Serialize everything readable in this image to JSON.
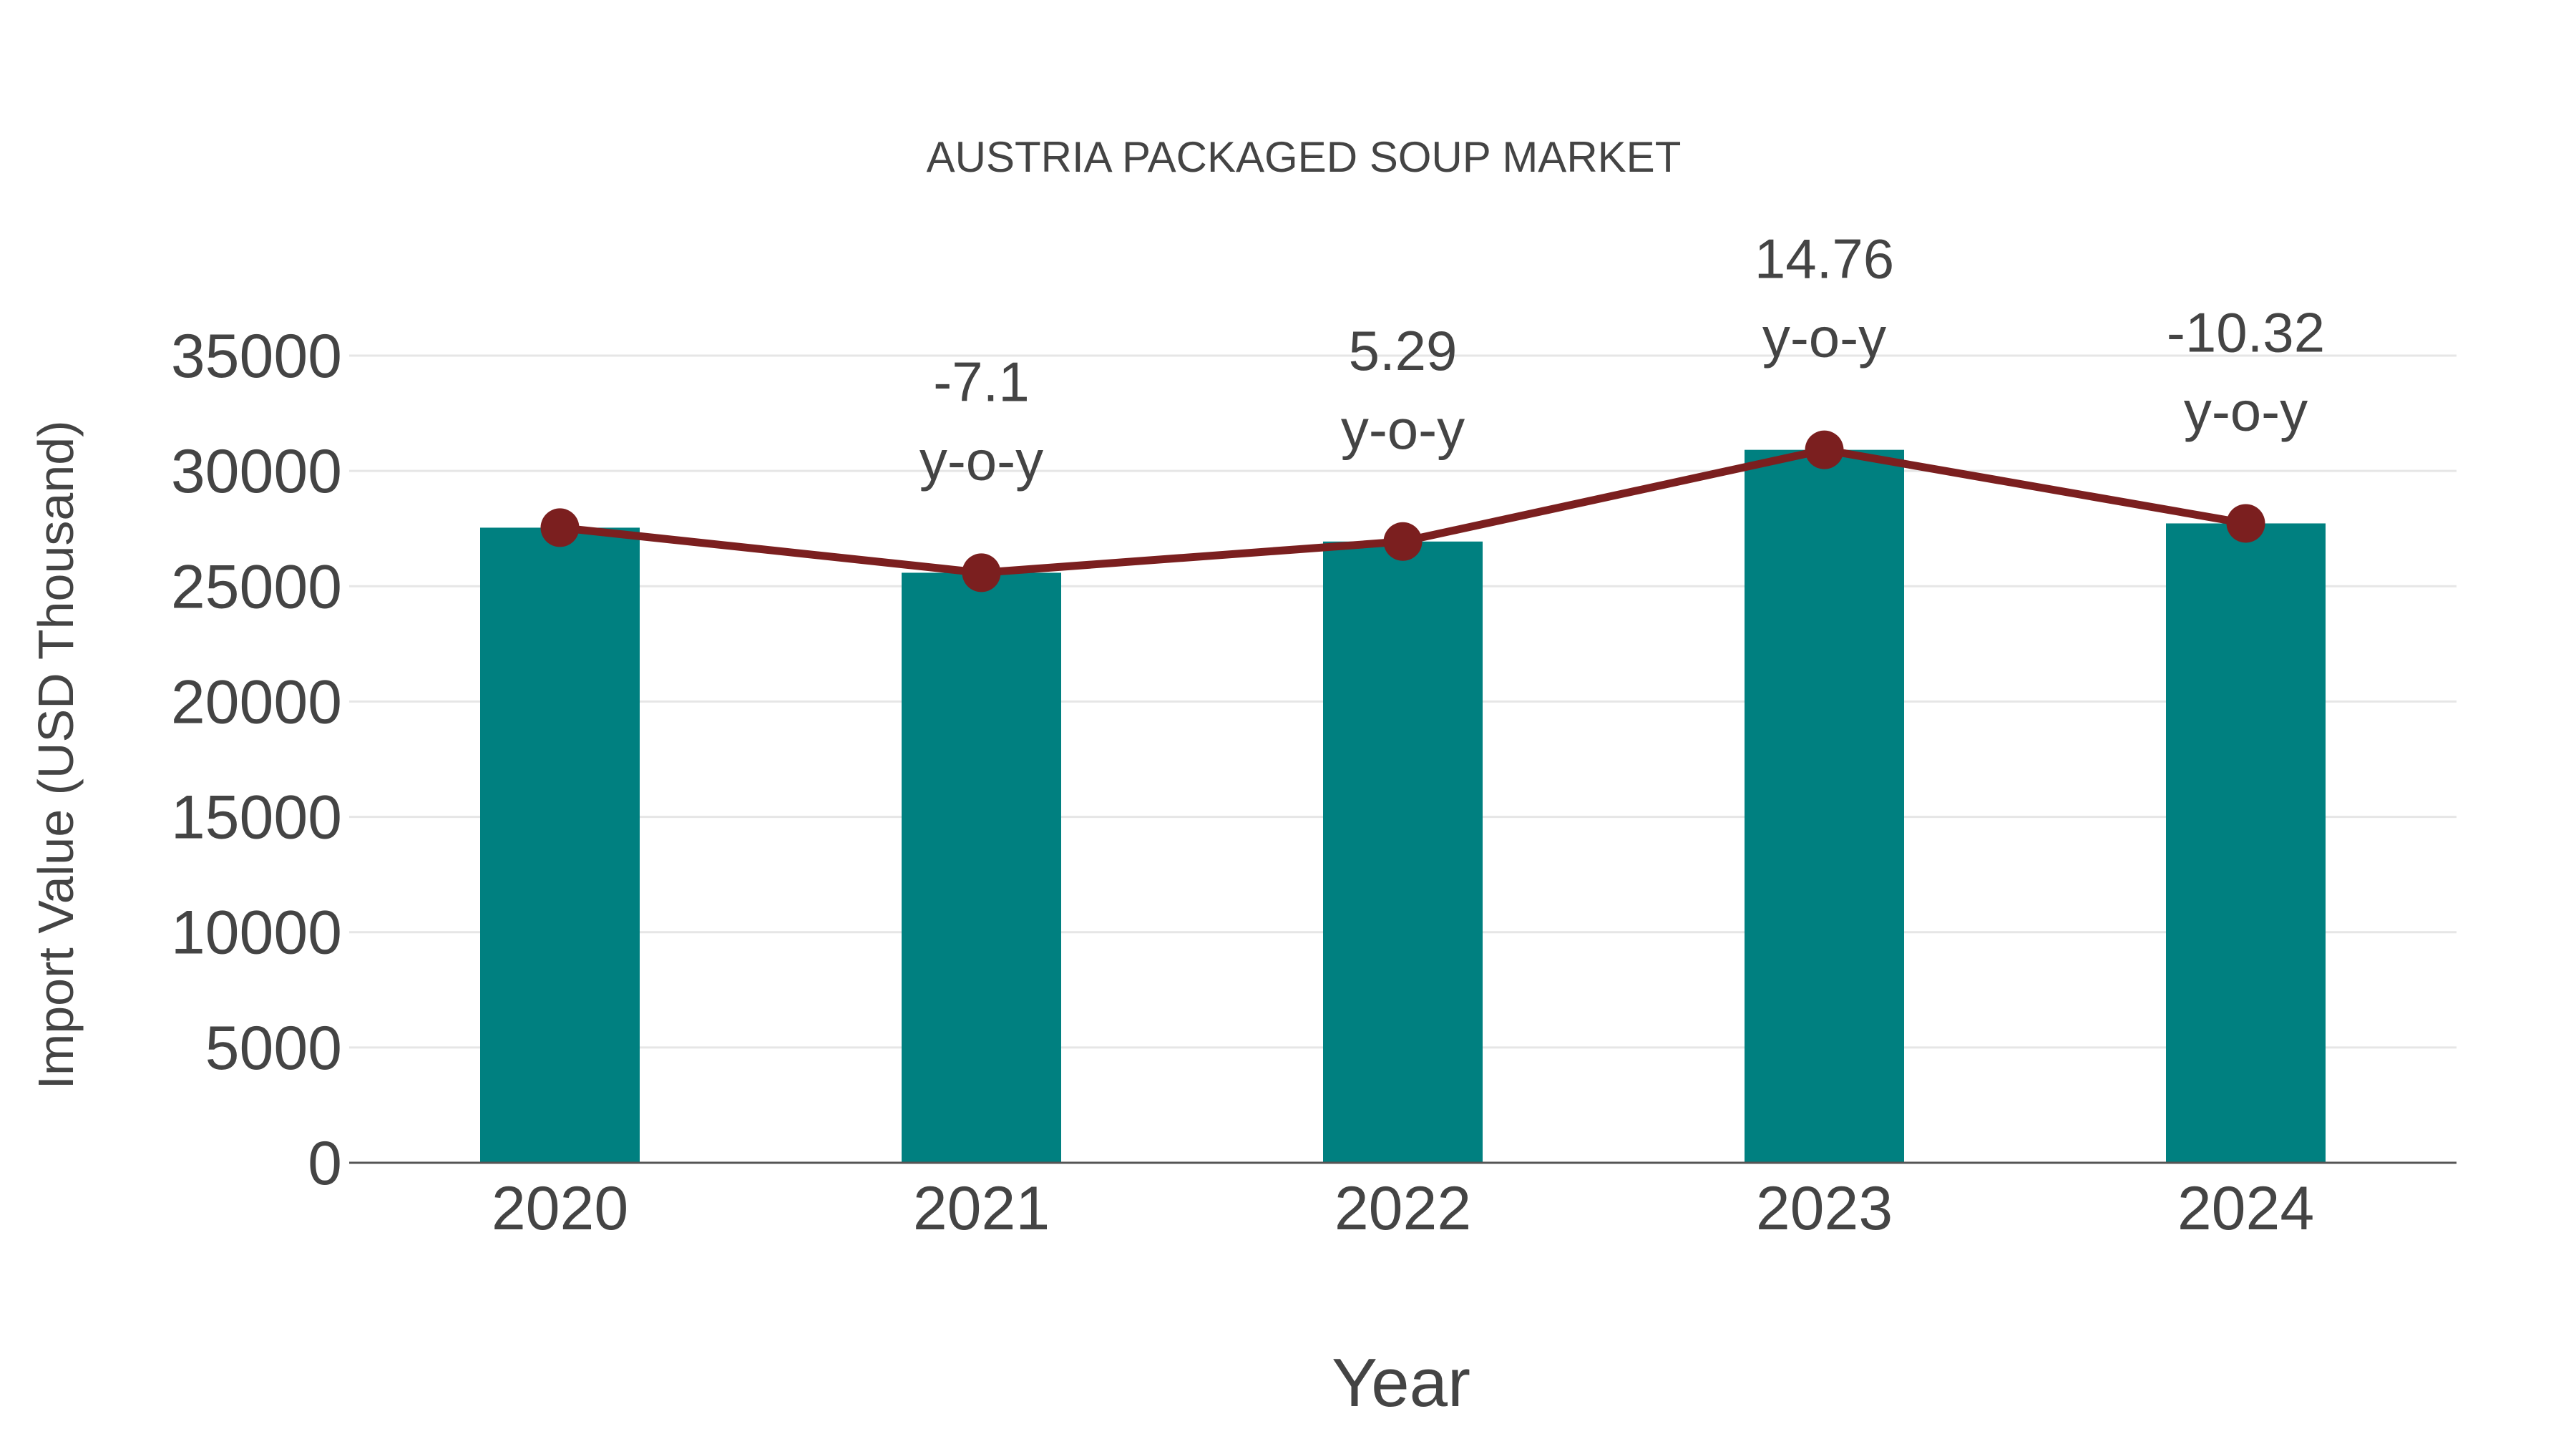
{
  "chart_data": {
    "type": "bar",
    "title": "AUSTRIA PACKAGED SOUP MARKET",
    "xlabel": "Year",
    "ylabel": "Import Value (USD Thousand)",
    "categories": [
      "2020",
      "2021",
      "2022",
      "2023",
      "2024"
    ],
    "series": [
      {
        "name": "Import Value",
        "type": "bar",
        "color": "#008080",
        "values": [
          27540,
          25585,
          26939,
          30915,
          27725
        ]
      },
      {
        "name": "Trend",
        "type": "line",
        "color": "#7b1f1f",
        "values": [
          27540,
          25585,
          26939,
          30915,
          27725
        ]
      }
    ],
    "annotations": [
      {
        "category": "2021",
        "value": "-7.1",
        "suffix": "y-o-y"
      },
      {
        "category": "2022",
        "value": "5.29",
        "suffix": "y-o-y"
      },
      {
        "category": "2023",
        "value": "14.76",
        "suffix": "y-o-y"
      },
      {
        "category": "2024",
        "value": "-10.32",
        "suffix": "y-o-y"
      }
    ],
    "yticks": [
      "0",
      "5000",
      "10000",
      "15000",
      "20000",
      "25000",
      "30000",
      "35000"
    ],
    "ylim": [
      0,
      35000
    ],
    "grid": true,
    "legend": "none"
  }
}
